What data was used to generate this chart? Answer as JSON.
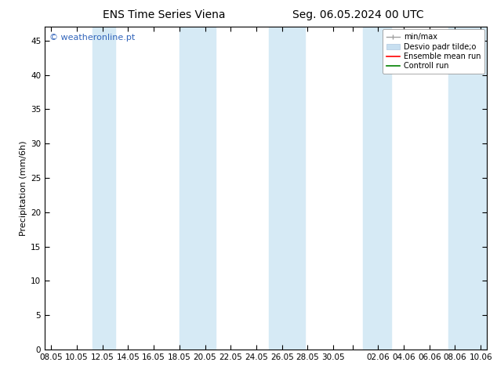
{
  "title_left": "ENS Time Series Viena",
  "title_right": "Seg. 06.05.2024 00 UTC",
  "ylabel": "Precipitation (mm/6h)",
  "watermark": "© weatheronline.pt",
  "ylim": [
    0,
    47
  ],
  "yticks": [
    0,
    5,
    10,
    15,
    20,
    25,
    30,
    35,
    40,
    45
  ],
  "xtick_labels": [
    "08.05",
    "10.05",
    "12.05",
    "14.05",
    "16.05",
    "18.05",
    "20.05",
    "22.05",
    "24.05",
    "26.05",
    "28.05",
    "30.05",
    "",
    "02.06",
    "04.06",
    "06.06",
    "08.06",
    "10.06"
  ],
  "tick_positions": [
    0,
    2,
    4,
    6,
    8,
    10,
    12,
    14,
    16,
    18,
    20,
    22,
    23.5,
    25.5,
    27.5,
    29.5,
    31.5,
    33.5
  ],
  "xlim": [
    -0.5,
    34.0
  ],
  "background_color": "#ffffff",
  "plot_bg_color": "#ffffff",
  "shaded_band_color": "#d6eaf5",
  "shaded_x": [
    [
      3.2,
      5.0
    ],
    [
      10.0,
      12.8
    ],
    [
      17.0,
      19.8
    ],
    [
      24.3,
      26.5
    ],
    [
      31.0,
      34.0
    ]
  ],
  "legend": {
    "min_max_color": "#a0a0a0",
    "std_dev_color": "#c8dff0",
    "mean_run_color": "#ff0000",
    "control_run_color": "#008000",
    "labels": [
      "min/max",
      "Desvio padr tilde;o",
      "Ensemble mean run",
      "Controll run"
    ]
  },
  "title_fontsize": 10,
  "tick_fontsize": 7.5,
  "ylabel_fontsize": 8,
  "watermark_fontsize": 8,
  "legend_fontsize": 7
}
